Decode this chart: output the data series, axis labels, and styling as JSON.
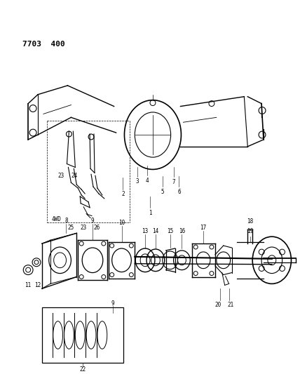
{
  "title": "7703  400",
  "bg_color": "#ffffff",
  "line_color": "#000000",
  "figsize": [
    4.28,
    5.33
  ],
  "dpi": 100
}
